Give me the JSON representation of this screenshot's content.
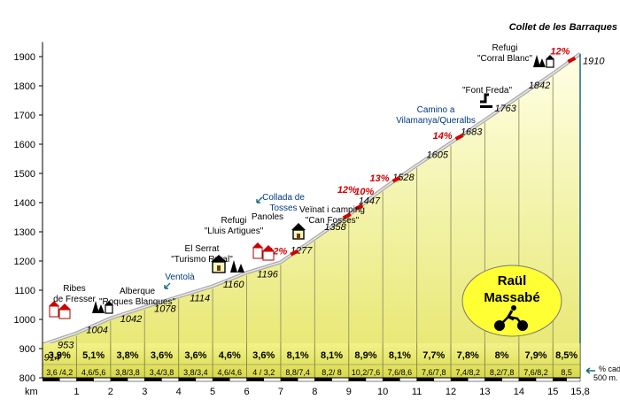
{
  "title": "Collet de les Barraques",
  "y_unit_note": "% cada 500 m.",
  "x_unit": "km",
  "rider": {
    "first": "Raül",
    "last": "Massabé"
  },
  "chart_data": {
    "type": "area",
    "ylim": [
      800,
      1950
    ],
    "y_ticks": [
      800,
      900,
      1000,
      1100,
      1200,
      1300,
      1400,
      1500,
      1600,
      1700,
      1800,
      1900
    ],
    "x_ticks": [
      0,
      1,
      2,
      3,
      4,
      5,
      6,
      7,
      8,
      9,
      10,
      11,
      12,
      13,
      14,
      15,
      15.8
    ],
    "x_tick_labels": [
      "km",
      "1",
      "2",
      "3",
      "4",
      "5",
      "6",
      "7",
      "8",
      "9",
      "10",
      "11",
      "12",
      "13",
      "14",
      "15",
      "15,8"
    ],
    "profile": {
      "x": [
        0,
        1,
        2,
        3,
        4,
        5,
        6,
        7,
        8,
        9,
        10,
        11,
        12,
        13,
        14,
        15,
        15.8
      ],
      "elevation": [
        914,
        953,
        1004,
        1042,
        1078,
        1114,
        1160,
        1196,
        1277,
        1358,
        1447,
        1528,
        1605,
        1683,
        1763,
        1842,
        1910
      ],
      "elevation_labels": [
        "914",
        "953",
        "1004",
        "1042",
        "1078",
        "1114",
        "1160",
        "1196",
        "1277",
        "1358",
        "1447",
        "1528",
        "1605",
        "1683",
        "1763",
        "1842",
        "1910"
      ]
    },
    "segments": [
      {
        "gradient": "3,9%",
        "sub": "3,6 /4,2"
      },
      {
        "gradient": "5,1%",
        "sub": "4,6/5,6"
      },
      {
        "gradient": "3,8%",
        "sub": "3,8/3,8"
      },
      {
        "gradient": "3,6%",
        "sub": "3,4/3,8"
      },
      {
        "gradient": "3,6%",
        "sub": "3,8/3,4"
      },
      {
        "gradient": "4,6%",
        "sub": "4,6/4,6"
      },
      {
        "gradient": "3,6%",
        "sub": "4 / 3,2"
      },
      {
        "gradient": "8,1%",
        "sub": "8,8/7,4"
      },
      {
        "gradient": "8,1%",
        "sub": "8,2/ 8"
      },
      {
        "gradient": "8,9%",
        "sub": "10,2/7,6"
      },
      {
        "gradient": "8,1%",
        "sub": "7,6/8,6"
      },
      {
        "gradient": "7,7%",
        "sub": "7,6/7,8"
      },
      {
        "gradient": "7,8%",
        "sub": "7,4/8,2"
      },
      {
        "gradient": "8%",
        "sub": "8,2/7,8"
      },
      {
        "gradient": "7,9%",
        "sub": "7,6/8,2"
      },
      {
        "gradient": "8,5%",
        "sub": "8,5"
      }
    ],
    "steep_markers": [
      {
        "label": "12%",
        "x": 7.4
      },
      {
        "label": "12%",
        "x": 8.95
      },
      {
        "label": "10%",
        "x": 9.3
      },
      {
        "label": "13%",
        "x": 10.4
      },
      {
        "label": "14%",
        "x": 12.25
      },
      {
        "label": "12%",
        "x": 15.55
      }
    ],
    "annotations": [
      {
        "text": "Ribes\nde Fresser",
        "x": 0.3,
        "icon": "town-icon"
      },
      {
        "text": "Alberque\n\"Roques Blanques\"",
        "x": 1.4,
        "icon": "forest-icon"
      },
      {
        "text": "Ventolà",
        "x": 3.9,
        "icon": "flag-icon"
      },
      {
        "text": "El Serrat\n\"Turismo Rural\"",
        "x": 5.0,
        "icon": "house-tree-icon"
      },
      {
        "text": "Refugi\n\"Lluis Artigues\"",
        "x": 6.25,
        "icon": ""
      },
      {
        "text": "Collada de\nTosses",
        "x": 6.7,
        "icon": "flag-icon"
      },
      {
        "text": "Panoles",
        "x": 6.6,
        "icon": "town-icon"
      },
      {
        "text": "Veïnat i camping\n\"Can Fosses\"",
        "x": 7.8,
        "icon": "house-icon"
      },
      {
        "text": "Camino a\nVilamanya/Queralbs",
        "x": 12.85,
        "icon": "direction-icon"
      },
      {
        "text": "\"Font Freda\"",
        "x": 13.2,
        "icon": ""
      },
      {
        "text": "Refugi\n\"Corral Blanc\"",
        "x": 14.6,
        "icon": "forest-icon"
      }
    ]
  }
}
